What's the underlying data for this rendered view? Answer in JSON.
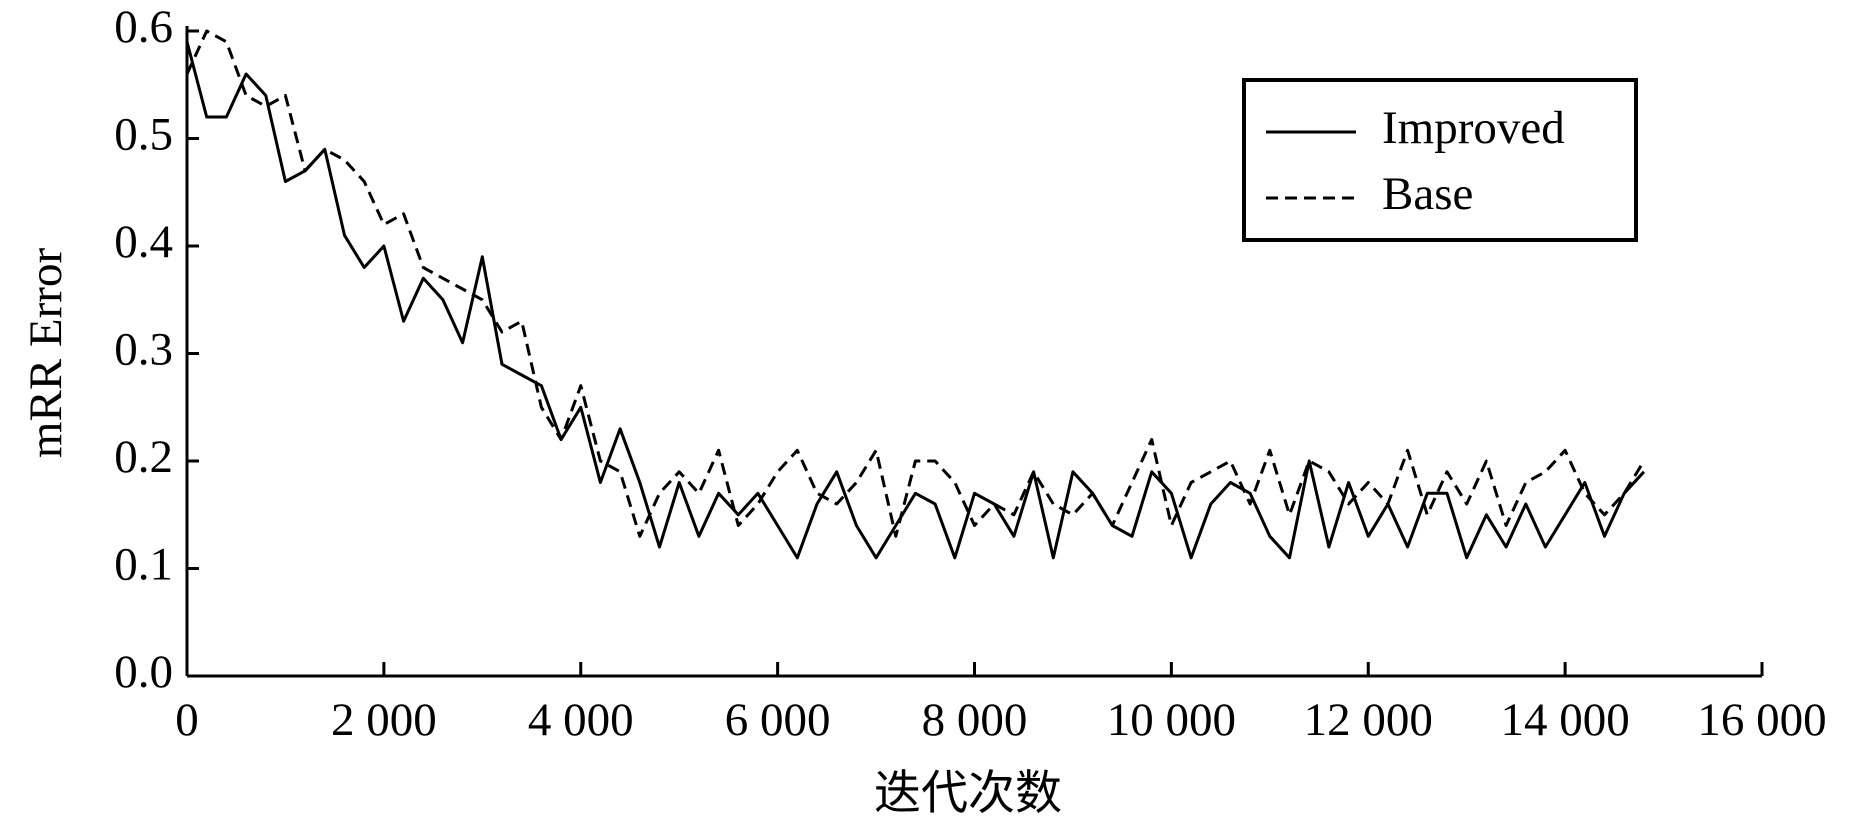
{
  "chart_data": {
    "type": "line",
    "x_label": "迭代次数",
    "y_label": "mRR Error",
    "x": [
      0,
      200,
      400,
      600,
      800,
      1000,
      1200,
      1400,
      1600,
      1800,
      2000,
      2200,
      2400,
      2600,
      2800,
      3000,
      3200,
      3400,
      3600,
      3800,
      4000,
      4200,
      4400,
      4600,
      4800,
      5000,
      5200,
      5400,
      5600,
      5800,
      6000,
      6200,
      6400,
      6600,
      6800,
      7000,
      7200,
      7400,
      7600,
      7800,
      8000,
      8200,
      8400,
      8600,
      8800,
      9000,
      9200,
      9400,
      9600,
      9800,
      10000,
      10200,
      10400,
      10600,
      10800,
      11000,
      11200,
      11400,
      11600,
      11800,
      12000,
      12200,
      12400,
      12600,
      12800,
      13000,
      13200,
      13400,
      13600,
      13800,
      14000,
      14200,
      14400,
      14600,
      14800
    ],
    "series": [
      {
        "name": "Improved",
        "color": "#000000",
        "dash": false,
        "values": [
          0.59,
          0.52,
          0.52,
          0.56,
          0.54,
          0.46,
          0.47,
          0.49,
          0.41,
          0.38,
          0.4,
          0.33,
          0.37,
          0.35,
          0.31,
          0.39,
          0.29,
          0.28,
          0.27,
          0.22,
          0.25,
          0.18,
          0.23,
          0.18,
          0.12,
          0.18,
          0.13,
          0.17,
          0.15,
          0.17,
          0.14,
          0.11,
          0.16,
          0.19,
          0.14,
          0.11,
          0.14,
          0.17,
          0.16,
          0.11,
          0.17,
          0.16,
          0.13,
          0.19,
          0.11,
          0.19,
          0.17,
          0.14,
          0.13,
          0.19,
          0.17,
          0.11,
          0.16,
          0.18,
          0.17,
          0.13,
          0.11,
          0.2,
          0.12,
          0.18,
          0.13,
          0.16,
          0.12,
          0.17,
          0.17,
          0.11,
          0.15,
          0.12,
          0.16,
          0.12,
          0.15,
          0.18,
          0.13,
          0.17,
          0.19
        ]
      },
      {
        "name": "Base",
        "color": "#000000",
        "dash": true,
        "values": [
          0.56,
          0.6,
          0.59,
          0.54,
          0.53,
          0.54,
          0.47,
          0.49,
          0.48,
          0.46,
          0.42,
          0.43,
          0.38,
          0.37,
          0.36,
          0.35,
          0.32,
          0.33,
          0.25,
          0.22,
          0.27,
          0.2,
          0.19,
          0.13,
          0.17,
          0.19,
          0.17,
          0.21,
          0.14,
          0.16,
          0.19,
          0.21,
          0.17,
          0.16,
          0.18,
          0.21,
          0.13,
          0.2,
          0.2,
          0.18,
          0.14,
          0.16,
          0.15,
          0.19,
          0.16,
          0.15,
          0.17,
          0.14,
          0.18,
          0.22,
          0.14,
          0.18,
          0.19,
          0.2,
          0.16,
          0.21,
          0.15,
          0.2,
          0.19,
          0.16,
          0.18,
          0.16,
          0.21,
          0.15,
          0.19,
          0.16,
          0.2,
          0.14,
          0.18,
          0.19,
          0.21,
          0.17,
          0.15,
          0.17,
          0.2
        ]
      }
    ],
    "xlim": [
      0,
      16000
    ],
    "xticks": [
      0,
      {
        "value": 2000,
        "label": "2 000"
      },
      {
        "value": 4000,
        "label": "4 000"
      },
      {
        "value": 6000,
        "label": "6 000"
      },
      {
        "value": 8000,
        "label": "8 000"
      },
      {
        "value": 10000,
        "label": "10 000"
      },
      {
        "value": 12000,
        "label": "12 000"
      },
      {
        "value": 14000,
        "label": "14 000"
      },
      {
        "value": 16000,
        "label": "16 000"
      }
    ],
    "ylim": [
      0,
      0.6
    ],
    "yticks": [
      {
        "value": 0,
        "label": "0.0"
      },
      0.1,
      0.2,
      0.3,
      0.4,
      0.5,
      0.6
    ],
    "grid": false,
    "legend": "upper right"
  }
}
